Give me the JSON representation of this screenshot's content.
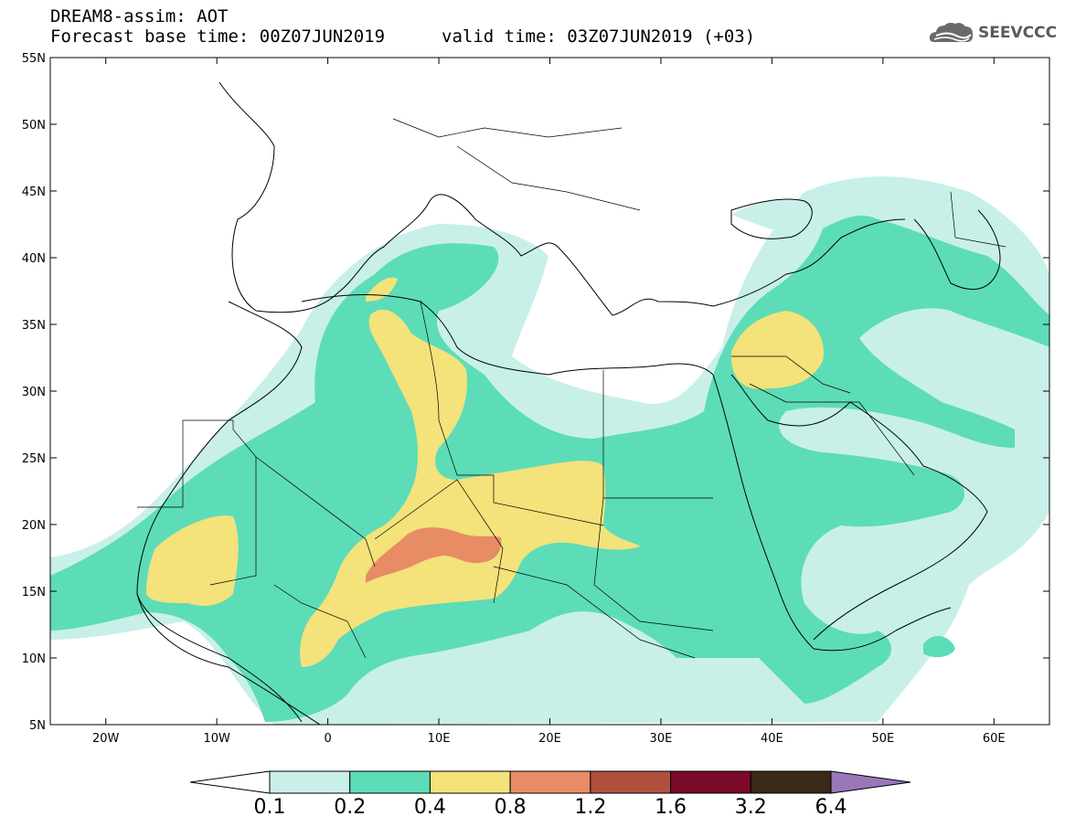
{
  "header": {
    "title": "DREAM8-assim: AOT",
    "forecast_base": "Forecast base time: 00Z07JUN2019",
    "valid_time": "valid time: 03Z07JUN2019 (+03)"
  },
  "logo": {
    "text": "SEEVCCC",
    "icon": "cloud-icon"
  },
  "map": {
    "lat_labels": [
      "55N",
      "50N",
      "45N",
      "40N",
      "35N",
      "30N",
      "25N",
      "20N",
      "15N",
      "10N",
      "5N"
    ],
    "lon_labels": [
      "20W",
      "10W",
      "0",
      "10E",
      "20E",
      "30E",
      "40E",
      "50E",
      "60E"
    ],
    "lon_range": [
      -25,
      65
    ],
    "lat_range": [
      5,
      55
    ]
  },
  "colorbar": {
    "labels": [
      "0.1",
      "0.2",
      "0.4",
      "0.8",
      "1.2",
      "1.6",
      "3.2",
      "6.4"
    ],
    "colors": [
      "#ffffff",
      "#c8f0e8",
      "#5ddcb8",
      "#f4e27a",
      "#e88c66",
      "#b0503c",
      "#7a0a28",
      "#3a2818",
      "#9a78b8"
    ]
  }
}
